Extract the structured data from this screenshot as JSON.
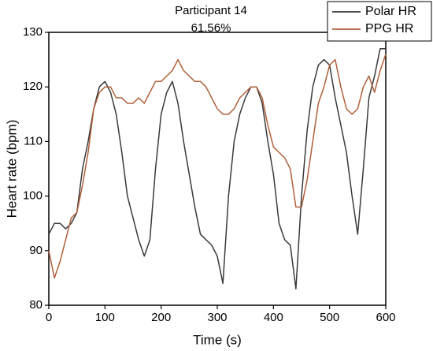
{
  "chart_data": {
    "type": "line",
    "title": "Participant 14",
    "subtitle": "61.56%",
    "x_label": "Time (s)",
    "y_label": "Heart rate (bpm)",
    "xlim": [
      0,
      600
    ],
    "ylim": [
      80,
      130
    ],
    "xticks": [
      0,
      100,
      200,
      300,
      400,
      500,
      600
    ],
    "yticks": [
      80,
      90,
      100,
      110,
      120,
      130
    ],
    "legend": "upper right",
    "x": [
      0,
      10,
      20,
      30,
      40,
      50,
      60,
      70,
      80,
      90,
      100,
      110,
      120,
      130,
      140,
      150,
      160,
      170,
      180,
      190,
      200,
      210,
      220,
      230,
      240,
      250,
      260,
      270,
      280,
      290,
      300,
      310,
      320,
      330,
      340,
      350,
      360,
      370,
      380,
      390,
      400,
      410,
      420,
      430,
      440,
      450,
      460,
      470,
      480,
      490,
      500,
      510,
      520,
      530,
      540,
      550,
      560,
      570,
      580,
      590,
      600
    ],
    "series": [
      {
        "name": "Polar HR",
        "color": "#3a3a3a",
        "values": [
          93,
          95,
          95,
          94,
          95,
          97,
          105,
          110,
          116,
          120,
          121,
          119,
          115,
          108,
          100,
          96,
          92,
          89,
          92,
          105,
          115,
          119,
          121,
          117,
          110,
          104,
          98,
          93,
          92,
          91,
          89,
          84,
          100,
          110,
          115,
          118,
          120,
          120,
          117,
          110,
          104,
          95,
          92,
          91,
          83,
          100,
          112,
          120,
          124,
          125,
          124,
          118,
          113,
          108,
          100,
          93,
          105,
          118,
          122,
          127,
          127
        ]
      },
      {
        "name": "PPG HR",
        "color": "#b0603a",
        "values": [
          90,
          85,
          88,
          92,
          96,
          97,
          102,
          108,
          116,
          119,
          120,
          120,
          118,
          118,
          117,
          117,
          118,
          117,
          119,
          121,
          121,
          122,
          123,
          125,
          123,
          122,
          121,
          121,
          120,
          118,
          116,
          115,
          115,
          116,
          118,
          119,
          120,
          120,
          118,
          113,
          109,
          108,
          107,
          105,
          98,
          98,
          103,
          110,
          117,
          120,
          124,
          125,
          120,
          116,
          115,
          116,
          120,
          122,
          119,
          123,
          126
        ]
      }
    ]
  }
}
